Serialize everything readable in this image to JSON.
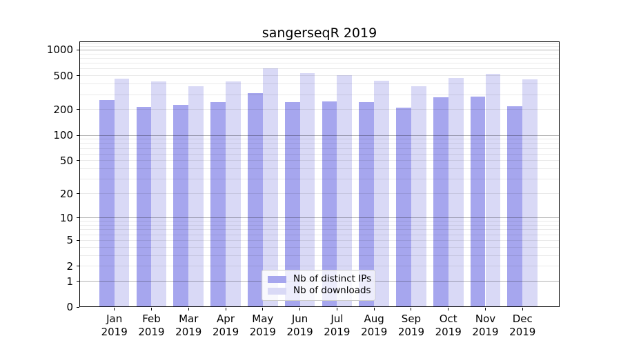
{
  "chart_data": {
    "type": "bar",
    "title": "sangerseqR 2019",
    "categories": [
      "Jan 2019",
      "Feb 2019",
      "Mar 2019",
      "Apr 2019",
      "May 2019",
      "Jun 2019",
      "Jul 2019",
      "Aug 2019",
      "Sep 2019",
      "Oct 2019",
      "Nov 2019",
      "Dec 2019"
    ],
    "series": [
      {
        "name": "Nb of distinct IPs",
        "color": "#a6a6ee",
        "values": [
          260,
          215,
          226,
          246,
          312,
          245,
          252,
          246,
          212,
          277,
          285,
          219
        ]
      },
      {
        "name": "Nb of downloads",
        "color": "#d9d9f6",
        "values": [
          464,
          428,
          376,
          430,
          606,
          535,
          506,
          439,
          376,
          467,
          529,
          453
        ]
      }
    ],
    "y_axis": {
      "scale": "log10(value+1)",
      "ticks": [
        0,
        1,
        2,
        5,
        10,
        20,
        50,
        100,
        200,
        500,
        1000
      ],
      "tick_labels": [
        "0",
        "1",
        "2",
        "5",
        "10",
        "20",
        "50",
        "100",
        "200",
        "500",
        "1000"
      ],
      "max": 1258
    },
    "x_axis": {
      "tick_labels_two_lines": true
    },
    "grid": {
      "horizontal": true,
      "minor_log_lines": true,
      "major_line_values": [
        1,
        10,
        100,
        1000
      ],
      "drawn_above_bars": true
    },
    "legend": {
      "position": "lower center"
    },
    "colors": {
      "background": "#ffffff",
      "axis": "#000000",
      "major_grid": "#b3b3b3",
      "minor_grid": "#e8e8e8"
    }
  }
}
